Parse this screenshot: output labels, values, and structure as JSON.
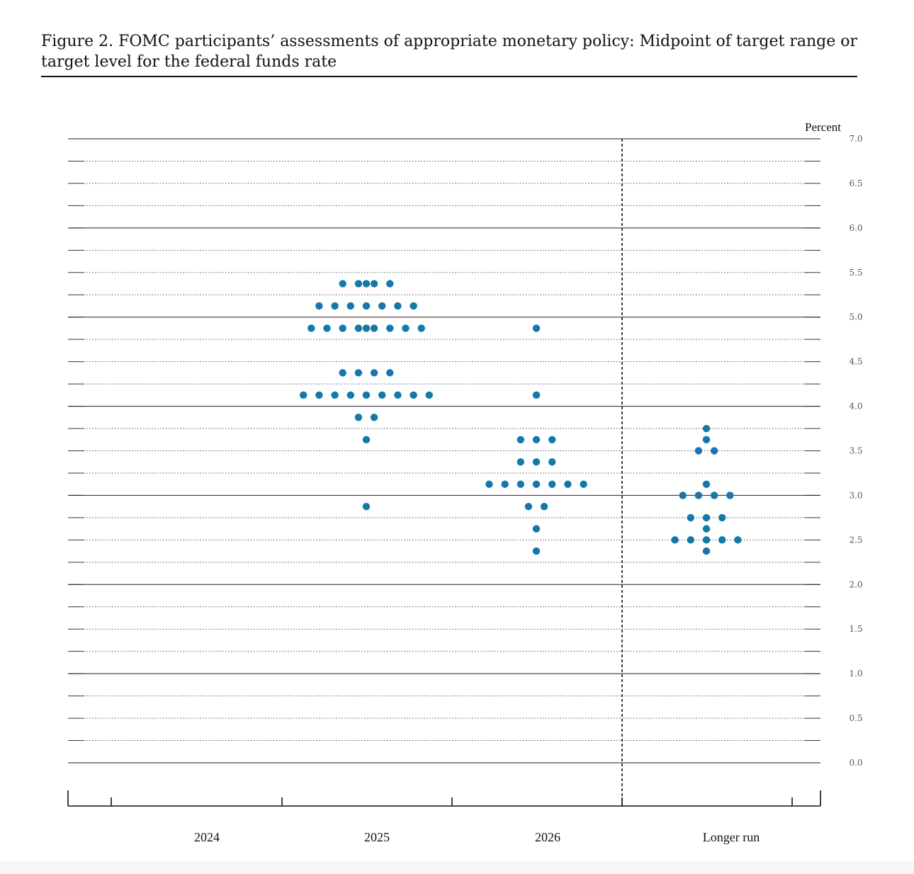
{
  "figure": {
    "title": "Figure 2.  FOMC participants’ assessments of appropriate monetary policy: Midpoint of target range or target level for the federal funds rate"
  },
  "chart_data": {
    "type": "scatter",
    "title": "Figure 2.  FOMC participants’ assessments of appropriate monetary policy: Midpoint of target range or target level for the federal funds rate",
    "unit_label": "Percent",
    "categories": [
      "2024",
      "2025",
      "2026",
      "Longer run"
    ],
    "ylim": [
      0,
      7
    ],
    "yticks": [
      "0.0",
      "0.5",
      "1.0",
      "1.5",
      "2.0",
      "2.5",
      "3.0",
      "3.5",
      "4.0",
      "4.5",
      "5.0",
      "5.5",
      "6.0",
      "6.5",
      "7.0"
    ],
    "dot_color": "#1479a8",
    "grid": true,
    "projections": [
      {
        "category": "2024",
        "values": [
          {
            "rate": 5.375,
            "count": 4
          },
          {
            "rate": 5.125,
            "count": 7
          },
          {
            "rate": 4.875,
            "count": 8
          }
        ]
      },
      {
        "category": "2025",
        "values": [
          {
            "rate": 5.375,
            "count": 1
          },
          {
            "rate": 4.875,
            "count": 1
          },
          {
            "rate": 4.375,
            "count": 4
          },
          {
            "rate": 4.125,
            "count": 9
          },
          {
            "rate": 3.875,
            "count": 2
          },
          {
            "rate": 3.625,
            "count": 1
          },
          {
            "rate": 2.875,
            "count": 1
          }
        ]
      },
      {
        "category": "2026",
        "values": [
          {
            "rate": 4.875,
            "count": 1
          },
          {
            "rate": 4.125,
            "count": 1
          },
          {
            "rate": 3.625,
            "count": 3
          },
          {
            "rate": 3.375,
            "count": 3
          },
          {
            "rate": 3.125,
            "count": 7
          },
          {
            "rate": 2.875,
            "count": 2
          },
          {
            "rate": 2.625,
            "count": 1
          },
          {
            "rate": 2.375,
            "count": 1
          }
        ]
      },
      {
        "category": "Longer run",
        "values": [
          {
            "rate": 3.75,
            "count": 1
          },
          {
            "rate": 3.625,
            "count": 1
          },
          {
            "rate": 3.5,
            "count": 2
          },
          {
            "rate": 3.125,
            "count": 1
          },
          {
            "rate": 3.0,
            "count": 4
          },
          {
            "rate": 2.75,
            "count": 3
          },
          {
            "rate": 2.625,
            "count": 1
          },
          {
            "rate": 2.5,
            "count": 5
          },
          {
            "rate": 2.375,
            "count": 1
          }
        ]
      }
    ]
  }
}
